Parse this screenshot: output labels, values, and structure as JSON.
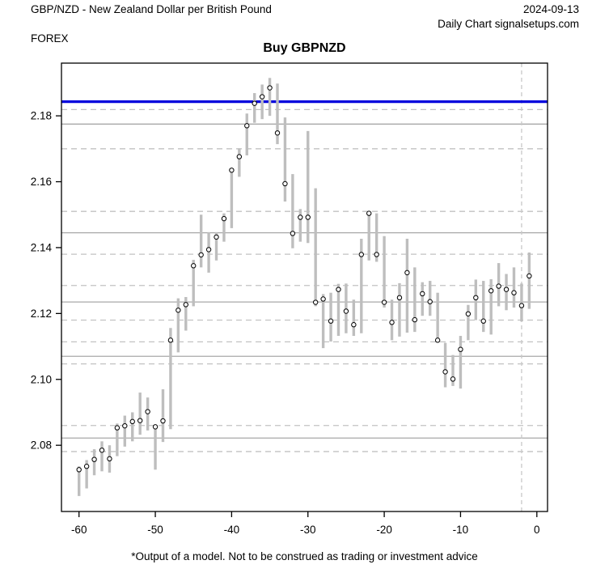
{
  "header": {
    "instrument": "GBP/NZD - New Zealand Dollar per British Pound",
    "date": "2024-09-13",
    "source": "Daily Chart signalsetups.com",
    "market": "FOREX"
  },
  "footer": {
    "disclaimer": "*Output of a model. Not to be construed as trading or investment advice"
  },
  "chart_data": {
    "type": "bar",
    "subtype": "high-low-range-with-close-dots",
    "title": "Buy GBPNZD",
    "xlabel": "",
    "ylabel": "",
    "xlim": [
      -62.3,
      1.4
    ],
    "ylim": [
      2.0599,
      2.196
    ],
    "grid": "horizontal-levels",
    "legend": "none",
    "xticks": [
      -60,
      -50,
      -40,
      -30,
      -20,
      -10,
      0
    ],
    "xtick_labels": [
      "-60",
      "-50",
      "-40",
      "-30",
      "-20",
      "-10",
      "0"
    ],
    "yticks": [
      2.08,
      2.1,
      2.12,
      2.14,
      2.16,
      2.18
    ],
    "ytick_labels": [
      "2.08",
      "2.10",
      "2.12",
      "2.14",
      "2.16",
      "2.18"
    ],
    "signal_line": {
      "value": 2.1843,
      "color": "#0000dd",
      "meaning": "buy level"
    },
    "event_vline": {
      "day": -2,
      "style": "dashed",
      "color": "#c8c8c8"
    },
    "levels_solid": [
      2.1775,
      2.1445,
      2.1235,
      2.107,
      2.0822
    ],
    "levels_dashed": [
      2.1819,
      2.17,
      2.151,
      2.138,
      2.1285,
      2.118,
      2.1114,
      2.1047,
      2.086,
      2.0781
    ],
    "colors": {
      "range_bar": "#bebebe",
      "close_dot_stroke": "#000000",
      "close_dot_fill": "#ffffff",
      "level_solid": "#a8a8a8",
      "level_dashed": "#c2c2c2",
      "axis": "#000000",
      "signal": "#0000dd"
    },
    "series": [
      {
        "d": -60,
        "l": 2.0646,
        "h": 2.0736,
        "c": 2.0726
      },
      {
        "d": -59,
        "l": 2.0669,
        "h": 2.0755,
        "c": 2.0736
      },
      {
        "d": -58,
        "l": 2.0709,
        "h": 2.0788,
        "c": 2.0757
      },
      {
        "d": -57,
        "l": 2.0721,
        "h": 2.0812,
        "c": 2.0785
      },
      {
        "d": -56,
        "l": 2.0717,
        "h": 2.08,
        "c": 2.0759
      },
      {
        "d": -55,
        "l": 2.0767,
        "h": 2.0866,
        "c": 2.0853
      },
      {
        "d": -54,
        "l": 2.0796,
        "h": 2.089,
        "c": 2.0859
      },
      {
        "d": -53,
        "l": 2.0812,
        "h": 2.09,
        "c": 2.0872
      },
      {
        "d": -52,
        "l": 2.0832,
        "h": 2.096,
        "c": 2.0875
      },
      {
        "d": -51,
        "l": 2.0845,
        "h": 2.0945,
        "c": 2.0902
      },
      {
        "d": -50,
        "l": 2.0726,
        "h": 2.0859,
        "c": 2.0856
      },
      {
        "d": -49,
        "l": 2.081,
        "h": 2.097,
        "c": 2.0874
      },
      {
        "d": -48,
        "l": 2.0849,
        "h": 2.1156,
        "c": 2.1119
      },
      {
        "d": -47,
        "l": 2.1082,
        "h": 2.1246,
        "c": 2.121
      },
      {
        "d": -46,
        "l": 2.1148,
        "h": 2.125,
        "c": 2.1227
      },
      {
        "d": -45,
        "l": 2.1222,
        "h": 2.1363,
        "c": 2.1345
      },
      {
        "d": -44,
        "l": 2.134,
        "h": 2.15,
        "c": 2.1378
      },
      {
        "d": -43,
        "l": 2.1324,
        "h": 2.1447,
        "c": 2.1394
      },
      {
        "d": -42,
        "l": 2.1361,
        "h": 2.1447,
        "c": 2.1432
      },
      {
        "d": -41,
        "l": 2.1418,
        "h": 2.1504,
        "c": 2.1488
      },
      {
        "d": -40,
        "l": 2.1459,
        "h": 2.164,
        "c": 2.1635
      },
      {
        "d": -39,
        "l": 2.1615,
        "h": 2.1701,
        "c": 2.1676
      },
      {
        "d": -38,
        "l": 2.168,
        "h": 2.1807,
        "c": 2.177
      },
      {
        "d": -37,
        "l": 2.1779,
        "h": 2.1869,
        "c": 2.1838
      },
      {
        "d": -36,
        "l": 2.179,
        "h": 2.1895,
        "c": 2.1858
      },
      {
        "d": -35,
        "l": 2.18,
        "h": 2.1915,
        "c": 2.1885
      },
      {
        "d": -34,
        "l": 2.1714,
        "h": 2.1898,
        "c": 2.1748
      },
      {
        "d": -33,
        "l": 2.154,
        "h": 2.1795,
        "c": 2.1594
      },
      {
        "d": -32,
        "l": 2.1398,
        "h": 2.1623,
        "c": 2.1443
      },
      {
        "d": -31,
        "l": 2.1418,
        "h": 2.1517,
        "c": 2.1492
      },
      {
        "d": -30,
        "l": 2.1414,
        "h": 2.1754,
        "c": 2.1492
      },
      {
        "d": -29,
        "l": 2.1222,
        "h": 2.158,
        "c": 2.1234
      },
      {
        "d": -28,
        "l": 2.1095,
        "h": 2.1259,
        "c": 2.1244
      },
      {
        "d": -27,
        "l": 2.1115,
        "h": 2.1263,
        "c": 2.1177
      },
      {
        "d": -26,
        "l": 2.1132,
        "h": 2.129,
        "c": 2.1273
      },
      {
        "d": -25,
        "l": 2.114,
        "h": 2.1291,
        "c": 2.1207
      },
      {
        "d": -24,
        "l": 2.1132,
        "h": 2.1242,
        "c": 2.1166
      },
      {
        "d": -23,
        "l": 2.114,
        "h": 2.1427,
        "c": 2.1379
      },
      {
        "d": -22,
        "l": 2.1361,
        "h": 2.1508,
        "c": 2.1504
      },
      {
        "d": -21,
        "l": 2.1357,
        "h": 2.1504,
        "c": 2.1379
      },
      {
        "d": -20,
        "l": 2.1218,
        "h": 2.1435,
        "c": 2.1234
      },
      {
        "d": -19,
        "l": 2.1119,
        "h": 2.1242,
        "c": 2.1173
      },
      {
        "d": -18,
        "l": 2.113,
        "h": 2.1292,
        "c": 2.1248
      },
      {
        "d": -17,
        "l": 2.1142,
        "h": 2.1427,
        "c": 2.1324
      },
      {
        "d": -16,
        "l": 2.1144,
        "h": 2.134,
        "c": 2.1181
      },
      {
        "d": -15,
        "l": 2.1193,
        "h": 2.1295,
        "c": 2.126
      },
      {
        "d": -14,
        "l": 2.1193,
        "h": 2.1299,
        "c": 2.1236
      },
      {
        "d": -13,
        "l": 2.1116,
        "h": 2.1263,
        "c": 2.1119
      },
      {
        "d": -12,
        "l": 2.0976,
        "h": 2.1111,
        "c": 2.1023
      },
      {
        "d": -11,
        "l": 2.098,
        "h": 2.1074,
        "c": 2.1001
      },
      {
        "d": -10,
        "l": 2.0972,
        "h": 2.1132,
        "c": 2.1091
      },
      {
        "d": -9,
        "l": 2.1119,
        "h": 2.1226,
        "c": 2.1199
      },
      {
        "d": -8,
        "l": 2.118,
        "h": 2.1303,
        "c": 2.1248
      },
      {
        "d": -7,
        "l": 2.1144,
        "h": 2.1299,
        "c": 2.1177
      },
      {
        "d": -6,
        "l": 2.1136,
        "h": 2.1304,
        "c": 2.1269
      },
      {
        "d": -5,
        "l": 2.1222,
        "h": 2.1353,
        "c": 2.1283
      },
      {
        "d": -4,
        "l": 2.121,
        "h": 2.132,
        "c": 2.1273
      },
      {
        "d": -3,
        "l": 2.1218,
        "h": 2.134,
        "c": 2.1263
      },
      {
        "d": -2,
        "l": 2.1176,
        "h": 2.1291,
        "c": 2.1224
      },
      {
        "d": -1,
        "l": 2.1214,
        "h": 2.1385,
        "c": 2.1314
      }
    ]
  }
}
